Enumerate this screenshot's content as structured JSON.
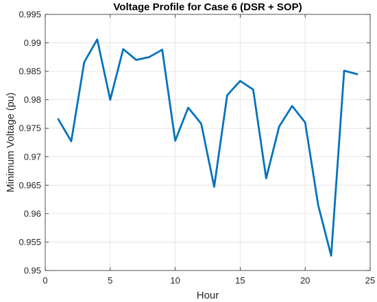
{
  "chart_data": {
    "type": "line",
    "title": "Voltage Profile for Case 6 (DSR + SOP)",
    "xlabel": "Hour",
    "ylabel": "Minimum Voltage (pu)",
    "xlim": [
      0,
      25
    ],
    "ylim": [
      0.95,
      0.995
    ],
    "xticks": [
      0,
      5,
      10,
      15,
      20,
      25
    ],
    "xtick_labels": [
      "0",
      "5",
      "10",
      "15",
      "20",
      "25"
    ],
    "yticks": [
      0.95,
      0.955,
      0.96,
      0.965,
      0.97,
      0.975,
      0.98,
      0.985,
      0.99,
      0.995
    ],
    "ytick_labels": [
      "0.95",
      "0.955",
      "0.96",
      "0.965",
      "0.97",
      "0.975",
      "0.98",
      "0.985",
      "0.99",
      "0.995"
    ],
    "grid": true,
    "series": [
      {
        "color": "#0072BD",
        "x": [
          1,
          2,
          3,
          4,
          5,
          6,
          7,
          8,
          9,
          10,
          11,
          12,
          13,
          14,
          15,
          16,
          17,
          18,
          19,
          20,
          21,
          22,
          23,
          24
        ],
        "y": [
          0.9766,
          0.9727,
          0.9866,
          0.9906,
          0.98,
          0.9889,
          0.987,
          0.9875,
          0.9888,
          0.9728,
          0.9786,
          0.9758,
          0.9647,
          0.9808,
          0.9833,
          0.9818,
          0.9662,
          0.9753,
          0.9789,
          0.976,
          0.9615,
          0.9526,
          0.9851,
          0.9845
        ]
      }
    ]
  }
}
